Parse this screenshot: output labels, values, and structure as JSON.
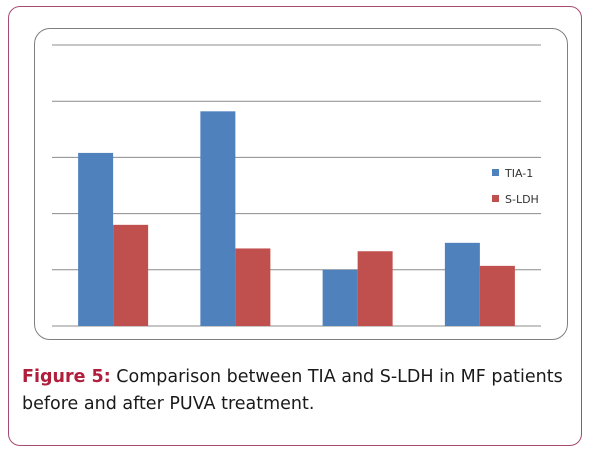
{
  "chart_data": {
    "type": "bar",
    "categories": [
      "",
      "",
      "",
      ""
    ],
    "series": [
      {
        "name": "TIA-1",
        "color": "#4f81bd",
        "values": [
          3.08,
          3.82,
          1.0,
          1.48
        ]
      },
      {
        "name": "S-LDH",
        "color": "#c0504d",
        "values": [
          1.8,
          1.38,
          1.33,
          1.07
        ]
      }
    ],
    "ylim": [
      0,
      5
    ],
    "yticks": [
      0,
      1,
      2,
      3,
      4,
      5
    ],
    "grid": true,
    "show_tick_labels": false,
    "legend": "right"
  },
  "caption": {
    "label": "Figure 5:",
    "text": " Comparison between TIA and S-LDH in MF patients before and after PUVA treatment."
  },
  "colors": {
    "frame_border": "#a64a72",
    "caption_label": "#b01e3c",
    "gridline": "#8c8c8c"
  }
}
